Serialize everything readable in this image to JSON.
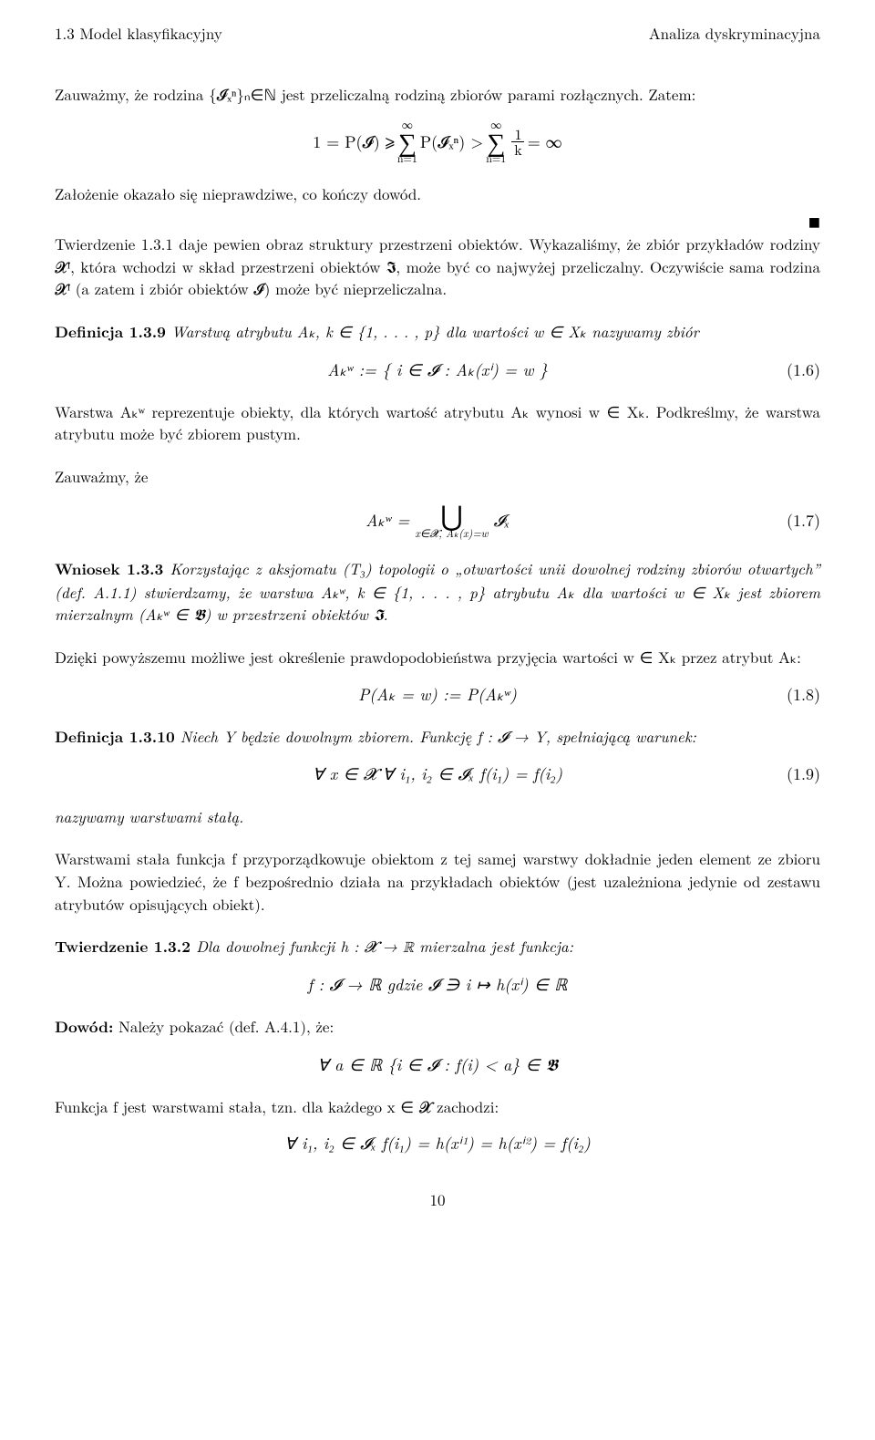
{
  "header": {
    "left": "1.3 Model klasyfikacyjny",
    "right": "Analiza dyskryminacyjna"
  },
  "p1": "Zauważmy, że rodzina {𝓘ₓⁿ}ₙ∈ℕ jest przeliczalną rodziną zbiorów parami rozłącznych. Zatem:",
  "eq1": {
    "lhs": "1 = P(𝓘) ⩾ ",
    "sum1_top": "∞",
    "sum1_bot": "n=1",
    "mid1": " P(𝓘ₓⁿ) > ",
    "sum2_top": "∞",
    "sum2_bot": "n=1",
    "frac_num": "1",
    "frac_den": "k",
    "rhs": " = ∞"
  },
  "p2": "Założenie okazało się nieprawdziwe, co kończy dowód.",
  "qed": "■",
  "p3": "Twierdzenie 1.3.1 daje pewien obraz struktury przestrzeni obiektów. Wykazaliśmy, że zbiór przykładów rodziny 𝓧ᴵ, która wchodzi w skład przestrzeni obiektów 𝕴, może być co najwyżej przeliczalny. Oczywiście sama rodzina 𝓧ᴵ (a zatem i zbiór obiektów 𝓘) może być nieprzeliczalna.",
  "def139_label": "Definicja 1.3.9",
  "def139_body": " Warstwą atrybutu Aₖ, k ∈ {1, . . . , p} dla wartości w ∈ Xₖ nazywamy zbiór",
  "eq16": {
    "formula": "Aₖʷ := { i ∈ 𝓘  :  Aₖ(xⁱ) = w }",
    "num": "(1.6)"
  },
  "p4": "Warstwa Aₖʷ reprezentuje obiekty, dla których wartość atrybutu Aₖ wynosi w ∈ Xₖ. Podkreślmy, że warstwa atrybutu może być zbiorem pustym.",
  "p5": "Zauważmy, że",
  "eq17": {
    "lhs": "Aₖʷ = ",
    "union_sub": "x∈𝓧,  Aₖ(x)=w",
    "rhs": " 𝓘ₓ",
    "num": "(1.7)"
  },
  "wniosek_label": "Wniosek 1.3.3",
  "wniosek_body": " Korzystając z aksjomatu (T₃) topologii o „otwartości unii dowolnej rodziny zbiorów otwartych” (def. A.1.1) stwierdzamy, że warstwa Aₖʷ, k ∈ {1, . . . , p} atrybutu Aₖ dla wartości w ∈ Xₖ jest zbiorem mierzalnym (Aₖʷ ∈ 𝕭) w przestrzeni obiektów 𝕴.",
  "p6": "Dzięki powyższemu możliwe jest określenie prawdopodobieństwa przyjęcia wartości w ∈ Xₖ przez atrybut Aₖ:",
  "eq18": {
    "formula": "P(Aₖ = w)  :=  P(Aₖʷ)",
    "num": "(1.8)"
  },
  "def1310_label": "Definicja 1.3.10",
  "def1310_body": " Niech Y będzie dowolnym zbiorem. Funkcję f : 𝓘 → Y, spełniającą warunek:",
  "eq19": {
    "formula": "∀ x ∈ 𝓧   ∀ i₁, i₂ ∈ 𝓘ₓ    f(i₁) = f(i₂)",
    "num": "(1.9)"
  },
  "p7": "nazywamy warstwami stałą.",
  "p8": "Warstwami stała funkcja f przyporządkowuje obiektom z tej samej warstwy dokładnie jeden element ze zbioru Y. Można powiedzieć, że f bezpośrednio działa na przykładach obiektów (jest uzależniona jedynie od zestawu atrybutów opisujących obiekt).",
  "tw132_label": "Twierdzenie 1.3.2",
  "tw132_body": " Dla dowolnej funkcji h : 𝓧 → ℝ mierzalna jest funkcja:",
  "eq_tw": "f : 𝓘 → ℝ    gdzie    𝓘 ∋ i ↦ h(xⁱ) ∈ ℝ",
  "dowod_label": "Dowód:",
  "dowod_body": " Należy pokazać (def. A.4.1), że:",
  "eq_dowod": "∀ a ∈ ℝ    {i ∈ 𝓘  :  f(i) < a} ∈ 𝕭",
  "p9": "Funkcja f jest warstwami stała, tzn. dla każdego x ∈ 𝓧 zachodzi:",
  "eq_last": "∀ i₁, i₂ ∈ 𝓘ₓ    f(i₁) = h(xⁱ¹) = h(xⁱ²) = f(i₂)",
  "pagenum": "10"
}
